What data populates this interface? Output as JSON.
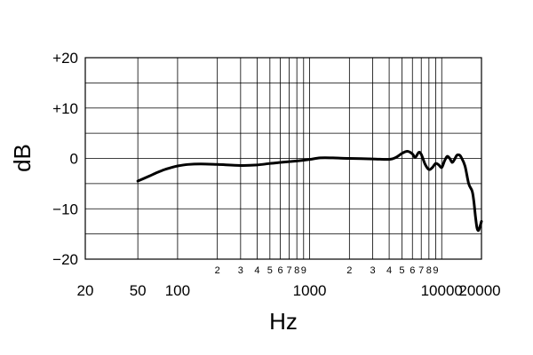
{
  "chart_data": {
    "type": "line",
    "title": "",
    "xlabel": "Hz",
    "ylabel": "dB",
    "x_scale": "log",
    "xlim": [
      20,
      20000
    ],
    "ylim": [
      -20,
      20
    ],
    "grid": true,
    "y_ticks": [
      {
        "value": 20,
        "label": "+20"
      },
      {
        "value": 10,
        "label": "+10"
      },
      {
        "value": 0,
        "label": "0"
      },
      {
        "value": -10,
        "label": "−10"
      },
      {
        "value": -20,
        "label": "−20"
      }
    ],
    "y_gridlines": [
      -15,
      -5,
      5,
      15
    ],
    "x_major_ticks": [
      {
        "value": 20,
        "label": "20"
      },
      {
        "value": 50,
        "label": "50"
      },
      {
        "value": 100,
        "label": "100"
      },
      {
        "value": 1000,
        "label": "1000"
      },
      {
        "value": 10000,
        "label": "10000"
      },
      {
        "value": 20000,
        "label": "20000"
      }
    ],
    "x_minor_ticks": [
      {
        "value": 200,
        "label": "2"
      },
      {
        "value": 300,
        "label": "3"
      },
      {
        "value": 400,
        "label": "4"
      },
      {
        "value": 500,
        "label": "5"
      },
      {
        "value": 600,
        "label": "6"
      },
      {
        "value": 700,
        "label": "7"
      },
      {
        "value": 800,
        "label": "8"
      },
      {
        "value": 900,
        "label": "9"
      },
      {
        "value": 2000,
        "label": "2"
      },
      {
        "value": 3000,
        "label": "3"
      },
      {
        "value": 4000,
        "label": "4"
      },
      {
        "value": 5000,
        "label": "5"
      },
      {
        "value": 6000,
        "label": "6"
      },
      {
        "value": 7000,
        "label": "7"
      },
      {
        "value": 8000,
        "label": "8"
      },
      {
        "value": 9000,
        "label": "9"
      }
    ],
    "series": [
      {
        "color": "#000000",
        "points": [
          [
            50,
            -4.5
          ],
          [
            60,
            -3.6
          ],
          [
            70,
            -2.8
          ],
          [
            80,
            -2.2
          ],
          [
            90,
            -1.8
          ],
          [
            100,
            -1.5
          ],
          [
            120,
            -1.2
          ],
          [
            150,
            -1.1
          ],
          [
            200,
            -1.2
          ],
          [
            300,
            -1.4
          ],
          [
            400,
            -1.3
          ],
          [
            500,
            -1.0
          ],
          [
            600,
            -0.8
          ],
          [
            800,
            -0.5
          ],
          [
            1000,
            -0.2
          ],
          [
            1200,
            0.1
          ],
          [
            1500,
            0.1
          ],
          [
            2000,
            0.0
          ],
          [
            3000,
            -0.1
          ],
          [
            4000,
            -0.2
          ],
          [
            4500,
            0.2
          ],
          [
            5000,
            1.0
          ],
          [
            5500,
            1.4
          ],
          [
            6000,
            0.9
          ],
          [
            6300,
            0.2
          ],
          [
            6700,
            1.2
          ],
          [
            7000,
            0.8
          ],
          [
            7500,
            -1.2
          ],
          [
            8000,
            -2.2
          ],
          [
            8500,
            -1.8
          ],
          [
            9000,
            -1.0
          ],
          [
            9500,
            -1.3
          ],
          [
            10000,
            -1.8
          ],
          [
            10500,
            -0.5
          ],
          [
            11000,
            0.4
          ],
          [
            11500,
            0.0
          ],
          [
            12000,
            -0.8
          ],
          [
            12500,
            -0.2
          ],
          [
            13000,
            0.6
          ],
          [
            13500,
            0.7
          ],
          [
            14000,
            0.3
          ],
          [
            15000,
            -1.5
          ],
          [
            16000,
            -5.0
          ],
          [
            17000,
            -6.5
          ],
          [
            17500,
            -8.5
          ],
          [
            18000,
            -11.5
          ],
          [
            18500,
            -13.8
          ],
          [
            19000,
            -14.3
          ],
          [
            19500,
            -13.5
          ],
          [
            20000,
            -12.5
          ]
        ]
      }
    ]
  }
}
